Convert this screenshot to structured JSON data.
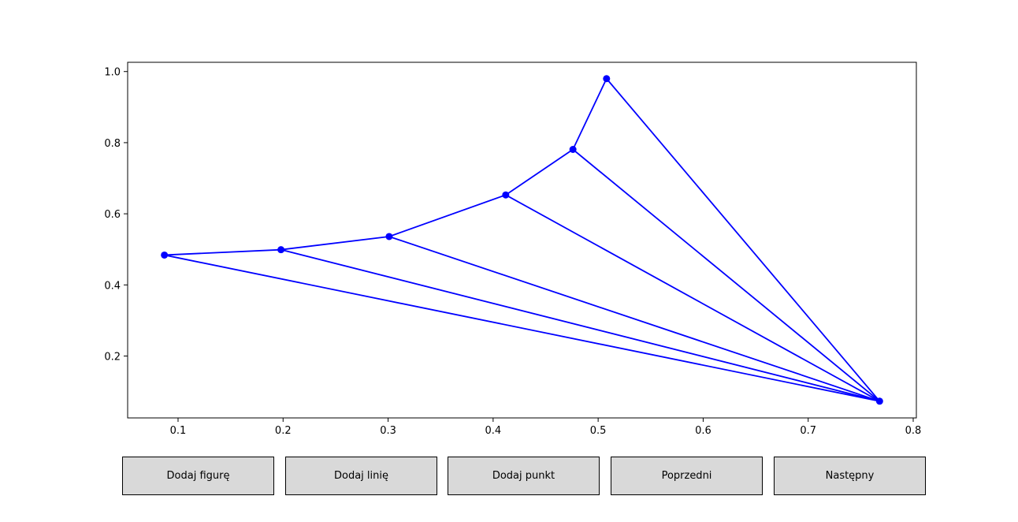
{
  "chart_data": {
    "type": "line",
    "title": "",
    "xlabel": "",
    "ylabel": "",
    "xlim": [
      0.052,
      0.803
    ],
    "ylim": [
      0.026,
      1.026
    ],
    "xticks": [
      0.1,
      0.2,
      0.3,
      0.4,
      0.5,
      0.6,
      0.7,
      0.8
    ],
    "yticks": [
      0.2,
      0.4,
      0.6,
      0.8,
      1.0
    ],
    "grid": false,
    "color": "#0000ff",
    "points": [
      {
        "x": 0.087,
        "y": 0.484
      },
      {
        "x": 0.198,
        "y": 0.499
      },
      {
        "x": 0.301,
        "y": 0.536
      },
      {
        "x": 0.412,
        "y": 0.653
      },
      {
        "x": 0.476,
        "y": 0.781
      },
      {
        "x": 0.508,
        "y": 0.98
      },
      {
        "x": 0.768,
        "y": 0.073
      }
    ],
    "edges": [
      [
        0,
        1
      ],
      [
        1,
        2
      ],
      [
        2,
        3
      ],
      [
        3,
        4
      ],
      [
        4,
        5
      ],
      [
        5,
        6
      ],
      [
        4,
        6
      ],
      [
        3,
        6
      ],
      [
        2,
        6
      ],
      [
        1,
        6
      ],
      [
        0,
        6
      ]
    ]
  },
  "buttons": [
    {
      "label": "Dodaj figurę"
    },
    {
      "label": "Dodaj linię"
    },
    {
      "label": "Dodaj punkt"
    },
    {
      "label": "Poprzedni"
    },
    {
      "label": "Następny"
    }
  ]
}
